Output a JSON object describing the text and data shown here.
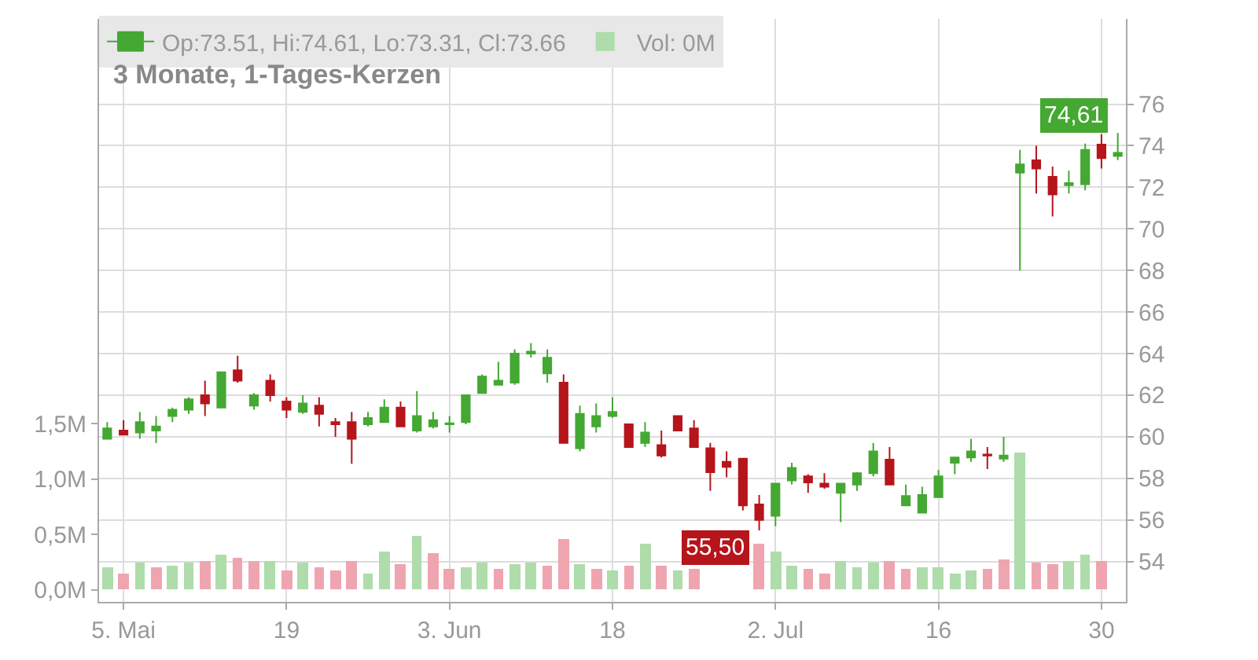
{
  "chart_data": {
    "type": "candlestick",
    "title": "3 Monate, 1-Tages-Kerzen",
    "categories": [
      null,
      "5. Mai",
      null,
      null,
      null,
      null,
      null,
      null,
      null,
      null,
      null,
      "19",
      null,
      null,
      null,
      null,
      null,
      null,
      null,
      null,
      null,
      "3. Jun",
      null,
      null,
      null,
      null,
      null,
      null,
      null,
      null,
      null,
      "18",
      null,
      null,
      null,
      null,
      null,
      null,
      null,
      null,
      null,
      "2. Jul",
      null,
      null,
      null,
      null,
      null,
      null,
      null,
      null,
      null,
      "16",
      null,
      null,
      null,
      null,
      null,
      null,
      null,
      null,
      null,
      "30",
      null
    ],
    "series": [
      {
        "name": "Op:73.51, Hi:74.61, Lo:73.31, Cl:73.66",
        "ohlc": [
          [
            59.9,
            60.7,
            59.9,
            60.4
          ],
          [
            60.3,
            60.8,
            60.1,
            60.1
          ],
          [
            60.2,
            61.2,
            59.9,
            60.7
          ],
          [
            60.3,
            61.0,
            59.7,
            60.5
          ],
          [
            61.0,
            61.4,
            60.7,
            61.3
          ],
          [
            61.3,
            61.9,
            61.1,
            61.8
          ],
          [
            62.0,
            62.7,
            61.0,
            61.6
          ],
          [
            61.4,
            63.1,
            61.4,
            63.1
          ],
          [
            63.2,
            63.9,
            62.6,
            62.7
          ],
          [
            61.5,
            62.1,
            61.3,
            62.0
          ],
          [
            62.7,
            63.0,
            61.7,
            62.0
          ],
          [
            61.7,
            61.9,
            60.9,
            61.3
          ],
          [
            61.2,
            62.0,
            61.1,
            61.6
          ],
          [
            61.5,
            61.9,
            60.5,
            61.1
          ],
          [
            60.7,
            60.9,
            60.0,
            60.6
          ],
          [
            60.7,
            61.2,
            58.7,
            59.9
          ],
          [
            60.6,
            61.2,
            60.5,
            60.9
          ],
          [
            60.7,
            61.8,
            60.7,
            61.4
          ],
          [
            61.4,
            61.7,
            60.5,
            60.5
          ],
          [
            60.3,
            62.2,
            60.2,
            61.0
          ],
          [
            60.5,
            61.2,
            60.4,
            60.8
          ],
          [
            60.6,
            61.0,
            60.2,
            60.65
          ],
          [
            60.7,
            62.0,
            60.6,
            62.0
          ],
          [
            62.1,
            63.0,
            62.1,
            62.9
          ],
          [
            62.5,
            63.6,
            62.5,
            62.7
          ],
          [
            62.6,
            64.2,
            62.5,
            64.0
          ],
          [
            64.0,
            64.5,
            63.8,
            64.1
          ],
          [
            63.05,
            64.2,
            62.6,
            63.8
          ],
          [
            62.6,
            63.0,
            59.7,
            59.7
          ],
          [
            59.45,
            61.5,
            59.3,
            61.1
          ],
          [
            60.5,
            61.6,
            60.2,
            61.0
          ],
          [
            61.0,
            61.9,
            60.9,
            61.2
          ],
          [
            60.6,
            60.6,
            59.5,
            59.5
          ],
          [
            59.7,
            60.7,
            59.5,
            60.2
          ],
          [
            59.6,
            60.3,
            59.0,
            59.1
          ],
          [
            61.0,
            61.0,
            60.3,
            60.3
          ],
          [
            60.4,
            60.8,
            59.5,
            59.5
          ],
          [
            59.45,
            59.7,
            57.4,
            58.3
          ],
          [
            58.8,
            59.3,
            58.05,
            58.55
          ],
          [
            58.95,
            58.95,
            56.45,
            56.7
          ],
          [
            56.75,
            57.2,
            55.5,
            56.0
          ],
          [
            56.2,
            57.75,
            55.7,
            57.75
          ],
          [
            57.9,
            58.75,
            57.7,
            58.5
          ],
          [
            58.1,
            58.2,
            57.3,
            57.8
          ],
          [
            57.75,
            58.25,
            57.5,
            57.6
          ],
          [
            57.3,
            57.75,
            55.9,
            57.75
          ],
          [
            57.7,
            58.3,
            57.4,
            58.25
          ],
          [
            58.25,
            59.7,
            58.1,
            59.3
          ],
          [
            58.9,
            59.5,
            57.7,
            57.7
          ],
          [
            56.7,
            57.7,
            56.7,
            57.15
          ],
          [
            56.35,
            57.6,
            56.35,
            57.2
          ],
          [
            57.1,
            58.4,
            57.1,
            58.1
          ],
          [
            58.75,
            59.0,
            58.2,
            59.0
          ],
          [
            59.0,
            59.9,
            58.8,
            59.3
          ],
          [
            59.15,
            59.5,
            58.45,
            59.1
          ],
          [
            58.95,
            60.0,
            58.8,
            59.1
          ],
          [
            72.7,
            73.8,
            68.0,
            73.1
          ],
          [
            73.3,
            74.0,
            71.7,
            72.9
          ],
          [
            72.5,
            73.0,
            70.6,
            71.65
          ],
          [
            72.1,
            72.8,
            71.7,
            72.2
          ],
          [
            72.15,
            74.1,
            71.85,
            73.8
          ],
          [
            74.05,
            74.55,
            72.9,
            73.4
          ],
          [
            73.51,
            74.61,
            73.31,
            73.66
          ]
        ],
        "colors": [
          "#44a832",
          "#b5151b",
          "#44a832",
          "#44a832",
          "#44a832",
          "#44a832",
          "#b5151b",
          "#44a832",
          "#b5151b",
          "#44a832",
          "#b5151b",
          "#b5151b",
          "#44a832",
          "#b5151b",
          "#b5151b",
          "#b5151b",
          "#44a832",
          "#44a832",
          "#b5151b",
          "#44a832",
          "#44a832",
          "#44a832",
          "#44a832",
          "#44a832",
          "#44a832",
          "#44a832",
          "#44a832",
          "#44a832",
          "#b5151b",
          "#44a832",
          "#44a832",
          "#44a832",
          "#b5151b",
          "#44a832",
          "#b5151b",
          "#b5151b",
          "#b5151b",
          "#b5151b",
          "#b5151b",
          "#b5151b",
          "#b5151b",
          "#44a832",
          "#44a832",
          "#b5151b",
          "#b5151b",
          "#44a832",
          "#44a832",
          "#44a832",
          "#b5151b",
          "#44a832",
          "#44a832",
          "#44a832",
          "#44a832",
          "#44a832",
          "#b5151b",
          "#44a832",
          "#44a832",
          "#b5151b",
          "#b5151b",
          "#44a832",
          "#44a832",
          "#b5151b",
          "#44a832"
        ]
      },
      {
        "type": "bar",
        "name": "Vol: 0M",
        "axis": "y2",
        "values": [
          0.2,
          0.15,
          0.25,
          0.2,
          0.22,
          0.25,
          0.26,
          0.31,
          0.29,
          0.26,
          0.26,
          0.17,
          0.25,
          0.2,
          0.18,
          0.26,
          0.14,
          0.34,
          0.23,
          0.49,
          0.33,
          0.19,
          0.2,
          0.25,
          0.19,
          0.23,
          0.25,
          0.22,
          0.46,
          0.23,
          0.19,
          0.18,
          0.22,
          0.42,
          0.22,
          0.18,
          0.19,
          null,
          null,
          null,
          0.41,
          0.35,
          0.21,
          0.19,
          0.15,
          0.26,
          0.2,
          0.25,
          0.26,
          0.19,
          0.2,
          0.2,
          0.15,
          0.17,
          0.19,
          0.27,
          1.24,
          0.24,
          0.23,
          0.26,
          0.32,
          0.26,
          0
        ],
        "colors": [
          "#aedcaa",
          "#efa5b0",
          "#aedcaa",
          "#efa5b0",
          "#aedcaa",
          "#aedcaa",
          "#efa5b0",
          "#aedcaa",
          "#efa5b0",
          "#efa5b0",
          "#aedcaa",
          "#efa5b0",
          "#aedcaa",
          "#efa5b0",
          "#efa5b0",
          "#efa5b0",
          "#aedcaa",
          "#aedcaa",
          "#efa5b0",
          "#aedcaa",
          "#efa5b0",
          "#efa5b0",
          "#aedcaa",
          "#aedcaa",
          "#efa5b0",
          "#aedcaa",
          "#aedcaa",
          "#efa5b0",
          "#efa5b0",
          "#aedcaa",
          "#efa5b0",
          "#aedcaa",
          "#efa5b0",
          "#aedcaa",
          "#efa5b0",
          "#aedcaa",
          "#efa5b0",
          "#efa5b0",
          "#efa5b0",
          "#efa5b0",
          "#efa5b0",
          "#aedcaa",
          "#aedcaa",
          "#efa5b0",
          "#efa5b0",
          "#aedcaa",
          "#aedcaa",
          "#aedcaa",
          "#efa5b0",
          "#efa5b0",
          "#aedcaa",
          "#aedcaa",
          "#aedcaa",
          "#aedcaa",
          "#efa5b0",
          "#efa5b0",
          "#aedcaa",
          "#efa5b0",
          "#efa5b0",
          "#aedcaa",
          "#aedcaa",
          "#efa5b0",
          "#aedcaa"
        ]
      }
    ],
    "ylim": [
      52.06,
      80.1
    ],
    "yticks": [
      54,
      56,
      58,
      60,
      62,
      64,
      66,
      68,
      70,
      72,
      74,
      76
    ],
    "y2lim": [
      -0.11,
      5.16
    ],
    "y2ticks": [
      {
        "value": 0,
        "label": "0,0M"
      },
      {
        "value": 0.5,
        "label": "0,5M"
      },
      {
        "value": 1,
        "label": "1,0M"
      },
      {
        "value": 1.5,
        "label": "1,5M"
      }
    ],
    "annotations": [
      "74,61",
      "55,50"
    ],
    "grid": true,
    "legend": "top left"
  }
}
